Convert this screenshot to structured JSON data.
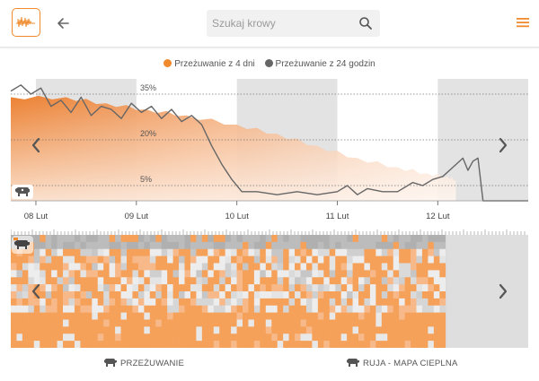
{
  "app": {
    "colors": {
      "accent": "#f08a2c",
      "muted": "#666666",
      "panel": "#e6e6e6"
    }
  },
  "header": {
    "logo_icon": "cow-rumination-logo-icon",
    "back_icon": "arrow-left-icon",
    "search": {
      "placeholder": "Szukaj krowy",
      "value": "",
      "icon": "search-icon"
    },
    "menu_icon": "hamburger-menu-icon"
  },
  "legend": [
    {
      "label": "Przeżuwanie z 4 dni",
      "color": "#f08a2c"
    },
    {
      "label": "Przeżuwanie z 24 godzin",
      "color": "#666666"
    }
  ],
  "chart_data": {
    "type": "area",
    "x_tick_labels": [
      "08 Lut",
      "09 Lut",
      "10 Lut",
      "11 Lut",
      "12 Lut"
    ],
    "y_tick_labels": [
      "35%",
      "20%",
      "5%"
    ],
    "y_ticks": [
      35,
      20,
      5
    ],
    "ylim": [
      0,
      40
    ],
    "xlim": [
      7.75,
      12.9
    ],
    "grid": "dotted horizontal at tick levels",
    "shaded_bands_x": [
      [
        8.0,
        9.0
      ],
      [
        10.0,
        11.0
      ],
      [
        12.0,
        13.0
      ]
    ],
    "series": [
      {
        "name": "Przeżuwanie z 4 dni",
        "color": "#f08a2c",
        "style": "filled-area",
        "x": [
          7.75,
          8.3,
          8.7,
          9.1,
          9.5,
          10.0,
          10.4,
          10.8,
          11.2,
          11.6,
          11.9,
          12.1,
          12.18
        ],
        "y": [
          34,
          34,
          32,
          30,
          28,
          25,
          22,
          18,
          14,
          11,
          9,
          8,
          7
        ]
      },
      {
        "name": "Przeżuwanie z 24 godzin",
        "color": "#666666",
        "style": "line",
        "x": [
          7.75,
          7.85,
          7.95,
          8.05,
          8.15,
          8.25,
          8.35,
          8.45,
          8.55,
          8.65,
          8.75,
          8.85,
          8.95,
          9.05,
          9.15,
          9.25,
          9.35,
          9.45,
          9.55,
          9.65,
          9.75,
          9.85,
          9.95,
          10.05,
          10.2,
          10.4,
          10.6,
          10.8,
          11.0,
          11.1,
          11.2,
          11.3,
          11.45,
          11.6,
          11.75,
          11.85,
          11.95,
          12.05,
          12.15,
          12.25,
          12.3,
          12.35,
          12.4,
          12.45,
          12.9
        ],
        "y": [
          36,
          38,
          35,
          37,
          31,
          33,
          29,
          34,
          28,
          31,
          30,
          27,
          32,
          29,
          31,
          27,
          30,
          26,
          28,
          25,
          18,
          12,
          7,
          3,
          3,
          2,
          3,
          2,
          3,
          5,
          2,
          4,
          3,
          3,
          6,
          5,
          7,
          8,
          11,
          14,
          10,
          13,
          14,
          0,
          0
        ]
      }
    ]
  },
  "heatmap": {
    "cow_icon": "cow-heat-icon",
    "colors": {
      "high": "#f5a15a",
      "low": "#ededed",
      "gray": "#b5b5b5"
    }
  },
  "tabs": [
    {
      "label": "PRZEŻUWANIE",
      "icon": "cow-icon"
    },
    {
      "label": "RUJA - MAPA CIEPLNA",
      "icon": "cow-heat-icon"
    }
  ],
  "nav": {
    "prev_icon": "chevron-left-icon",
    "next_icon": "chevron-right-icon"
  }
}
